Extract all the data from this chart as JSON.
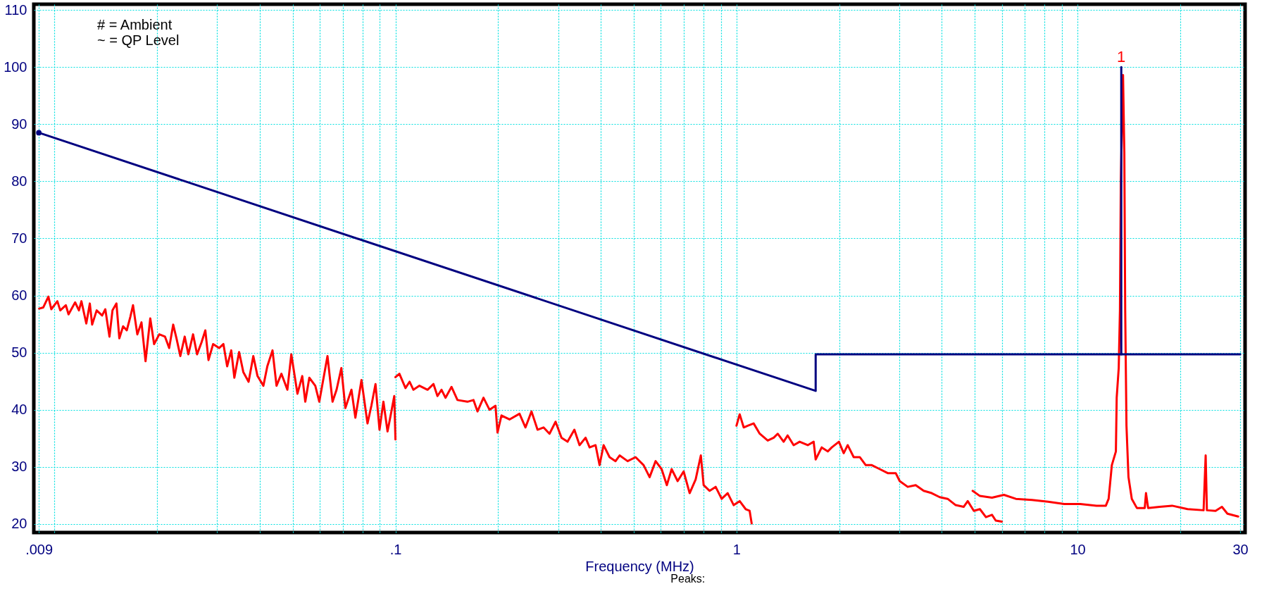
{
  "chart_data": {
    "type": "line",
    "xlabel": "Frequency (MHz)",
    "log": "x",
    "grid": true,
    "line_style": "solid",
    "xlim": [
      0.0087,
      31
    ],
    "ylim": [
      18.5,
      111
    ],
    "xticks": [
      {
        "value": 0.009,
        "label": ".009"
      },
      {
        "value": 0.01,
        "label": null
      },
      {
        "value": 0.02,
        "label": null
      },
      {
        "value": 0.03,
        "label": null
      },
      {
        "value": 0.04,
        "label": null
      },
      {
        "value": 0.05,
        "label": null
      },
      {
        "value": 0.06,
        "label": null
      },
      {
        "value": 0.07,
        "label": null
      },
      {
        "value": 0.08,
        "label": null
      },
      {
        "value": 0.09,
        "label": null
      },
      {
        "value": 0.1,
        "label": ".1"
      },
      {
        "value": 0.2,
        "label": null
      },
      {
        "value": 0.3,
        "label": null
      },
      {
        "value": 0.4,
        "label": null
      },
      {
        "value": 0.5,
        "label": null
      },
      {
        "value": 0.6,
        "label": null
      },
      {
        "value": 0.7,
        "label": null
      },
      {
        "value": 0.8,
        "label": null
      },
      {
        "value": 0.9,
        "label": null
      },
      1,
      {
        "value": 2,
        "label": null
      },
      {
        "value": 3,
        "label": null
      },
      {
        "value": 4,
        "label": null
      },
      {
        "value": 5,
        "label": null
      },
      {
        "value": 6,
        "label": null
      },
      {
        "value": 7,
        "label": null
      },
      {
        "value": 8,
        "label": null
      },
      {
        "value": 9,
        "label": null
      },
      10,
      {
        "value": 20,
        "label": null
      },
      30
    ],
    "yticks": [
      20,
      30,
      40,
      50,
      60,
      70,
      80,
      90,
      100,
      110
    ],
    "annotations": [
      "# = Ambient",
      "~ = QP Level",
      "Peaks:",
      {
        "text": "1",
        "x": 13.44,
        "y": 100
      }
    ],
    "series": [
      {
        "color": "#ff0000",
        "x": [
          0.00902,
          0.00927,
          0.0096,
          0.00979,
          0.0102,
          0.0104,
          0.0108,
          0.011,
          0.0115,
          0.0118,
          0.012,
          0.0124,
          0.0127,
          0.0129,
          0.0133,
          0.0138,
          0.0141,
          0.0145,
          0.0148,
          0.0152,
          0.0155,
          0.0159,
          0.0163,
          0.0167,
          0.017,
          0.0175,
          0.018,
          0.0185,
          0.0191,
          0.0196,
          0.0203,
          0.0211,
          0.0217,
          0.0223,
          0.0228,
          0.0234,
          0.0241,
          0.0247,
          0.0255,
          0.0262,
          0.027,
          0.0277,
          0.0283,
          0.0292,
          0.0304,
          0.0313,
          0.0321,
          0.033,
          0.0337,
          0.0348,
          0.0358,
          0.0371,
          0.0383,
          0.0394,
          0.041,
          0.0421,
          0.0436,
          0.0448,
          0.0463,
          0.0482,
          0.0495,
          0.0516,
          0.0533,
          0.0544,
          0.0559,
          0.0582,
          0.0598,
          0.0632,
          0.0654,
          0.0672,
          0.0694,
          0.0713,
          0.0743,
          0.0763,
          0.0795,
          0.0828,
          0.085,
          0.0874,
          0.0898,
          0.0922,
          0.0948,
          0.0973,
          0.0992,
          0.1
        ],
        "values": [
          57.7,
          57.9,
          59.8,
          57.6,
          59.0,
          57.4,
          58.3,
          56.7,
          58.8,
          57.4,
          59.0,
          55.1,
          58.6,
          54.9,
          57.4,
          56.5,
          57.6,
          52.8,
          57.4,
          58.6,
          52.5,
          54.6,
          53.9,
          56.3,
          58.3,
          53.2,
          55.3,
          48.5,
          56.0,
          51.5,
          53.2,
          52.8,
          50.8,
          54.9,
          52.5,
          49.4,
          52.8,
          49.7,
          53.2,
          49.7,
          51.8,
          53.9,
          48.7,
          51.5,
          50.8,
          51.5,
          47.6,
          50.4,
          45.6,
          50.1,
          46.6,
          44.9,
          49.4,
          45.9,
          44.2,
          47.6,
          50.4,
          44.2,
          46.3,
          43.5,
          49.7,
          42.8,
          45.9,
          41.4,
          45.6,
          44.2,
          41.4,
          49.4,
          41.4,
          43.5,
          47.3,
          40.3,
          43.5,
          38.6,
          45.2,
          37.6,
          40.7,
          44.5,
          36.5,
          41.4,
          36.2,
          39.7,
          42.4,
          34.8
        ]
      },
      {
        "color": "#ff0000",
        "x": [
          0.1,
          0.1027,
          0.107,
          0.11,
          0.1129,
          0.1176,
          0.1242,
          0.1293,
          0.1328,
          0.1365,
          0.1402,
          0.146,
          0.152,
          0.1626,
          0.1694,
          0.174,
          0.1812,
          0.1887,
          0.1965,
          0.1992,
          0.2046,
          0.216,
          0.2311,
          0.2406,
          0.2506,
          0.261,
          0.2718,
          0.283,
          0.2948,
          0.3069,
          0.3197,
          0.3347,
          0.3466,
          0.361,
          0.371,
          0.3862,
          0.3968,
          0.4077,
          0.4245,
          0.442,
          0.4543,
          0.4795,
          0.5061,
          0.5342,
          0.5563,
          0.5793,
          0.6033,
          0.6249,
          0.6455,
          0.6722,
          0.7,
          0.729,
          0.7591,
          0.7862,
          0.8012,
          0.8343,
          0.8688,
          0.9048,
          0.9423,
          0.9813,
          1.022,
          1.064,
          1.093,
          1.108
        ],
        "values": [
          45.7,
          46.3,
          43.8,
          44.9,
          43.5,
          44.2,
          43.5,
          44.5,
          42.4,
          43.5,
          42.1,
          44.0,
          41.7,
          41.4,
          41.7,
          39.7,
          42.1,
          40.0,
          40.7,
          36.0,
          39.0,
          38.3,
          39.3,
          36.9,
          39.7,
          36.5,
          36.9,
          35.8,
          37.9,
          35.1,
          34.4,
          36.5,
          33.8,
          35.1,
          33.4,
          33.8,
          30.3,
          33.8,
          31.7,
          31.0,
          32.0,
          31.0,
          31.7,
          30.3,
          28.2,
          31.0,
          29.6,
          26.8,
          29.6,
          27.5,
          29.2,
          25.4,
          27.8,
          32.0,
          26.8,
          25.8,
          26.5,
          24.4,
          25.4,
          23.3,
          24.0,
          22.6,
          22.3,
          20.1
        ]
      },
      {
        "color": "#ff0000",
        "x": [
          1.0,
          1.022,
          1.05,
          1.079,
          1.123,
          1.17,
          1.235,
          1.286,
          1.321,
          1.375,
          1.413,
          1.471,
          1.532,
          1.618,
          1.684,
          1.707,
          1.778,
          1.852,
          1.903,
          1.997,
          2.063,
          2.119,
          2.207,
          2.299,
          2.394,
          2.494,
          2.632,
          2.777,
          2.931,
          3.011,
          3.178,
          3.354,
          3.54,
          3.736,
          3.943,
          4.162,
          4.393,
          4.636,
          4.766,
          4.967,
          5.174,
          5.389,
          5.614,
          5.758,
          5.998
        ],
        "values": [
          37.2,
          39.2,
          36.9,
          37.2,
          37.6,
          35.8,
          34.6,
          35.1,
          35.8,
          34.4,
          35.5,
          33.8,
          34.4,
          33.8,
          34.4,
          31.3,
          33.4,
          32.7,
          33.4,
          34.4,
          32.4,
          33.8,
          31.7,
          31.7,
          30.3,
          30.3,
          29.6,
          28.9,
          28.9,
          27.5,
          26.5,
          26.8,
          25.8,
          25.4,
          24.7,
          24.4,
          23.3,
          23.0,
          24.0,
          22.3,
          22.6,
          21.2,
          21.6,
          20.6,
          20.4
        ]
      },
      {
        "color": "#ff0000",
        "x": [
          4.926,
          5.174,
          5.614,
          6.086,
          6.595,
          7.354,
          8.2,
          9.143,
          10.19,
          11.37,
          12.11,
          12.34,
          12.61,
          12.96,
          13.03,
          13.21,
          13.32,
          13.4,
          13.6,
          13.72,
          13.8,
          13.92,
          14.11,
          14.43,
          14.93,
          15.75,
          15.88,
          16.11,
          17.42,
          18.94,
          21.03,
          23.43,
          23.76,
          23.96,
          25.4,
          26.52,
          27.52,
          29.59
        ],
        "values": [
          25.8,
          24.9,
          24.6,
          25.1,
          24.4,
          24.2,
          23.9,
          23.5,
          23.5,
          23.2,
          23.2,
          24.4,
          30.3,
          32.7,
          42.1,
          47.3,
          57.4,
          80.0,
          98.6,
          85.0,
          57.4,
          37.2,
          28.2,
          24.4,
          22.8,
          22.8,
          25.4,
          22.8,
          23.0,
          23.2,
          22.6,
          22.4,
          32.0,
          22.4,
          22.3,
          23.0,
          21.8,
          21.3
        ]
      },
      {
        "color": "#000080",
        "x": [
          0.009,
          1.707,
          1.707,
          30
        ],
        "values": [
          88.5,
          43.3,
          49.7,
          49.7
        ]
      },
      {
        "color": "#000080",
        "x": [
          13.44,
          13.44
        ],
        "values": [
          49.7,
          100
        ]
      },
      {
        "color": "#000080",
        "type": "scatter",
        "marker": "circle",
        "x": [
          0.009
        ],
        "values": [
          88.5
        ]
      }
    ]
  }
}
